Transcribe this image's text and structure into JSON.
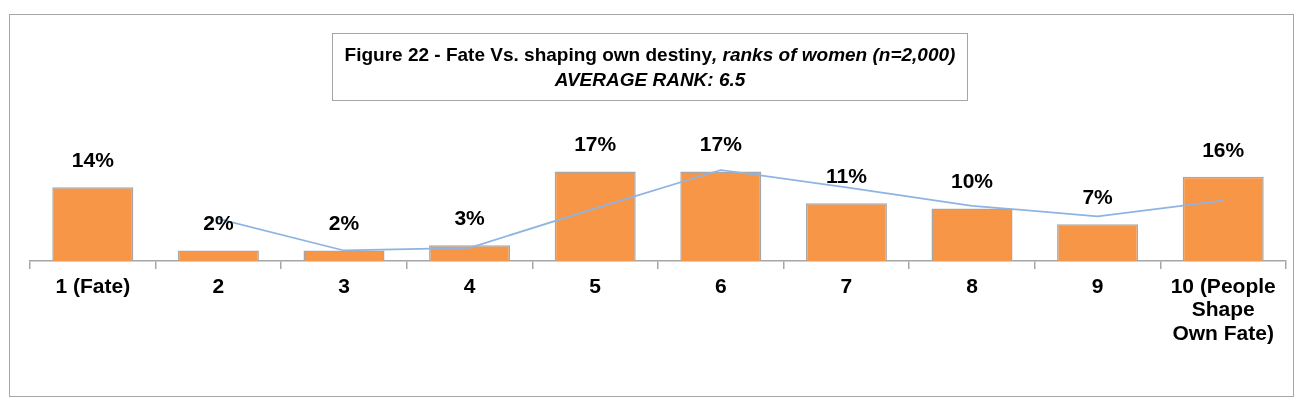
{
  "chart_data": {
    "type": "bar",
    "title": "Figure 22 - Fate Vs. shaping own destiny, ranks of women (n=2,000)",
    "subtitle": "AVERAGE RANK: 6.5",
    "categories": [
      "1 (Fate)",
      "2",
      "3",
      "4",
      "5",
      "6",
      "7",
      "8",
      "9",
      "10 (People Shape Own Fate)"
    ],
    "series": [
      {
        "color": "#f79646",
        "values": [
          14,
          2,
          2,
          3,
          17,
          17,
          11,
          10,
          7,
          16
        ],
        "value_labels": [
          "14%",
          "2%",
          "2%",
          "3%",
          "17%",
          "17%",
          "11%",
          "10%",
          "7%",
          "16%"
        ]
      },
      {
        "type": "line",
        "color": "#8eb4e3",
        "values": [
          null,
          8,
          2,
          2.5,
          10,
          17.3,
          14,
          10.5,
          8.5,
          11.5
        ]
      }
    ],
    "marker": "none"
  }
}
